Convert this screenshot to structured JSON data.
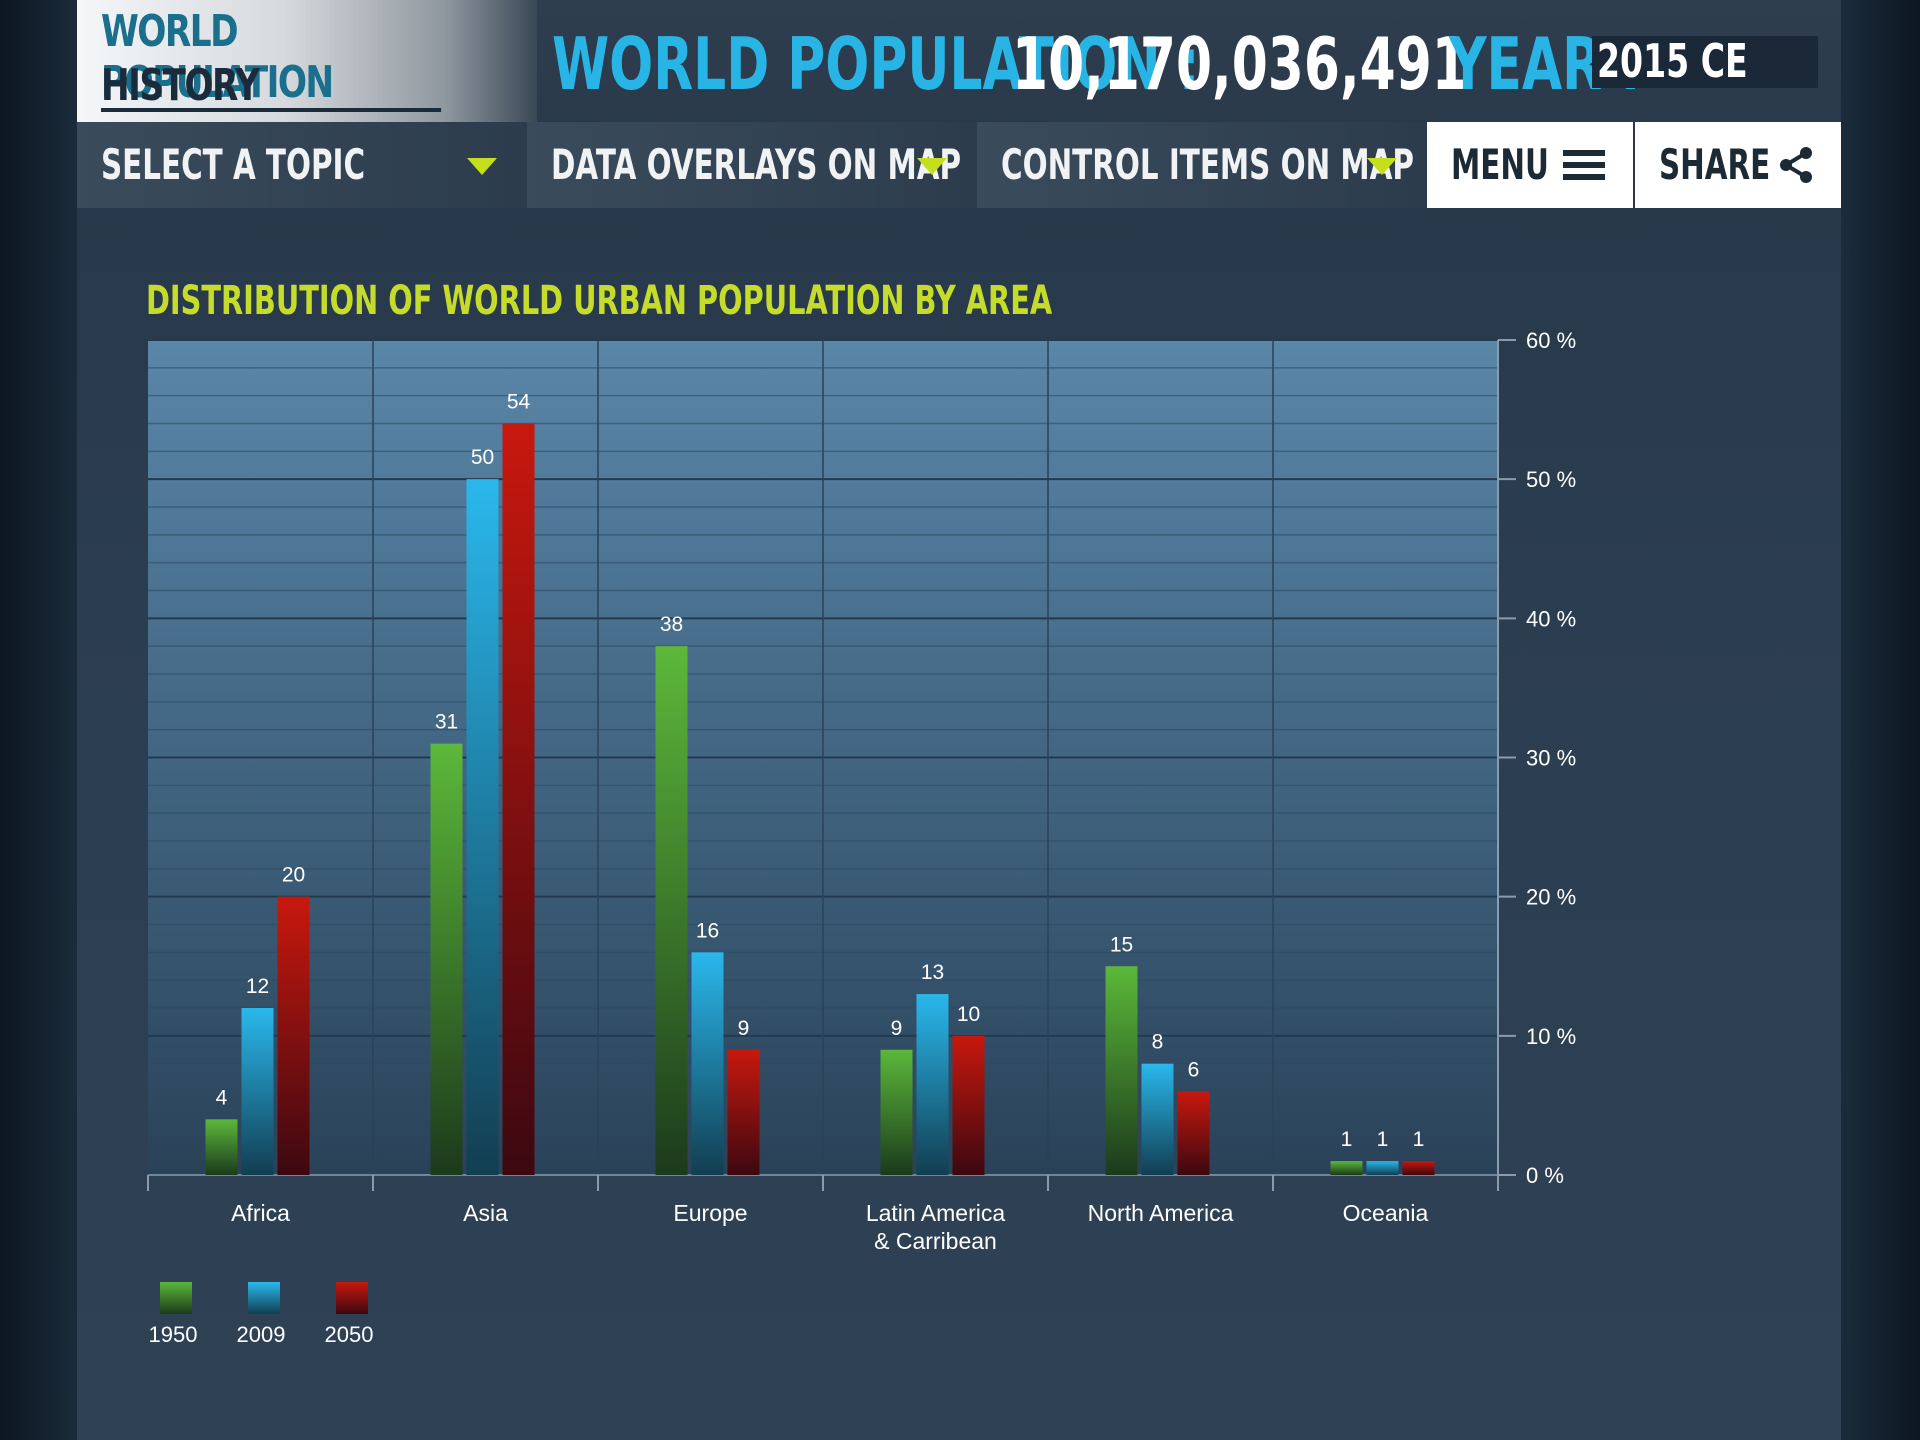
{
  "header": {
    "logo_line1": "WORLD POPULATION",
    "logo_line2": "HISTORY",
    "population_label": "WORLD POPULATION :",
    "population_value": "10,170,036,491",
    "year_label": "YEAR :",
    "year_value": "2015 CE"
  },
  "navbar": {
    "topic": "SELECT A TOPIC",
    "overlays": "DATA OVERLAYS ON MAP",
    "controls": "CONTROL ITEMS  ON  MAP",
    "menu": "MENU",
    "share": "SHARE"
  },
  "icons": {
    "dropdown": "triangle-down-icon",
    "menu": "hamburger-icon",
    "share": "share-icon"
  },
  "colors": {
    "accent": "#28b5e6",
    "title": "#c5dc2a",
    "series_1950": "#4a9e30",
    "series_2009": "#29b3e6",
    "series_2050": "#c01a10"
  },
  "chart_data": {
    "type": "bar",
    "title": "DISTRIBUTION OF WORLD URBAN POPULATION BY AREA",
    "categories": [
      "Africa",
      "Asia",
      "Europe",
      "Latin America\n& Carribean",
      "North America",
      "Oceania"
    ],
    "series": [
      {
        "name": "1950",
        "values": [
          4,
          31,
          38,
          9,
          15,
          1
        ]
      },
      {
        "name": "2009",
        "values": [
          12,
          50,
          16,
          13,
          8,
          1
        ]
      },
      {
        "name": "2050",
        "values": [
          20,
          54,
          9,
          10,
          6,
          1
        ]
      }
    ],
    "ylim": [
      0,
      60
    ],
    "yticks": [
      "0 %",
      "10 %",
      "20 %",
      "30 %",
      "40 %",
      "50 %",
      "60 %"
    ],
    "y_axis_side": "right",
    "grid": true,
    "legend_position": "bottom-left"
  }
}
